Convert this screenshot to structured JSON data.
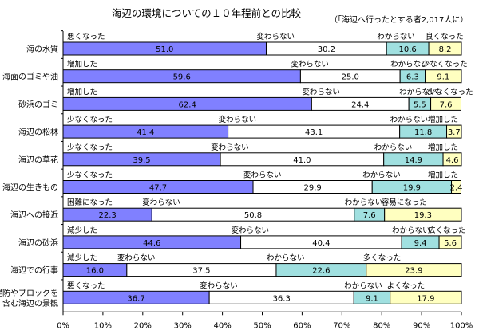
{
  "title": "海辺の環境についての１０年程前との比較",
  "note": "（「海辺へ行ったとする者2,017人に）",
  "colors": [
    "#8080ff",
    "#ffffff",
    "#a0e0e0",
    "#ffffc0"
  ],
  "chart_data": {
    "type": "bar",
    "orientation": "horizontal",
    "stacked": true,
    "xlim": [
      0,
      100
    ],
    "xticks": [
      "0%",
      "10%",
      "20%",
      "30%",
      "40%",
      "50%",
      "60%",
      "70%",
      "80%",
      "90%",
      "100%"
    ],
    "grid": false,
    "rows": [
      {
        "category": "海の水質",
        "labels": [
          "悪くなった",
          "変わらない",
          "わからない",
          "良くなった"
        ],
        "values": [
          51.0,
          30.2,
          10.6,
          8.2
        ]
      },
      {
        "category": "海面のゴミや油",
        "labels": [
          "増加した",
          "変わらない",
          "わからない",
          "少なくなった"
        ],
        "values": [
          59.6,
          25.0,
          6.3,
          9.1
        ]
      },
      {
        "category": "砂浜のゴミ",
        "labels": [
          "増加した",
          "変わらない",
          "わからない",
          "少なくなった"
        ],
        "values": [
          62.4,
          24.4,
          5.5,
          7.6
        ]
      },
      {
        "category": "海辺の松林",
        "labels": [
          "少なくなった",
          "変わらない",
          "わからない",
          "増加した"
        ],
        "values": [
          41.4,
          43.1,
          11.8,
          3.7
        ]
      },
      {
        "category": "海辺の草花",
        "labels": [
          "少なくなった",
          "変わらない",
          "わからない",
          "増加した"
        ],
        "values": [
          39.5,
          41.0,
          14.9,
          4.6
        ]
      },
      {
        "category": "海辺の生きもの",
        "labels": [
          "少なくなった",
          "変わらない",
          "わからない",
          "増加した"
        ],
        "values": [
          47.7,
          29.9,
          19.9,
          2.4
        ]
      },
      {
        "category": "海辺への接近",
        "labels": [
          "困難になった",
          "変わらない",
          "わからない",
          "容易になった"
        ],
        "values": [
          22.3,
          50.8,
          7.6,
          19.3
        ]
      },
      {
        "category": "海辺の砂浜",
        "labels": [
          "減少した",
          "変わらない",
          "わからない",
          "広くなった"
        ],
        "values": [
          44.6,
          40.4,
          9.4,
          5.6
        ]
      },
      {
        "category": "海辺での行事",
        "labels": [
          "減少した",
          "変わらない",
          "わからない",
          "多くなった"
        ],
        "values": [
          16.0,
          37.5,
          22.6,
          23.9
        ]
      },
      {
        "category": "堤防やブロックを\n含む海辺の景観",
        "labels": [
          "悪くなった",
          "変わらない",
          "わからない",
          "よくなった"
        ],
        "values": [
          36.7,
          36.3,
          9.1,
          17.9
        ]
      }
    ]
  }
}
